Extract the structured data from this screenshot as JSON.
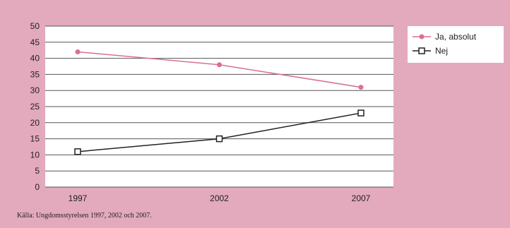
{
  "chart_data": {
    "type": "line",
    "categories": [
      "1997",
      "2002",
      "2007"
    ],
    "ylim": [
      0,
      50
    ],
    "yticks": [
      0,
      5,
      10,
      15,
      20,
      25,
      30,
      35,
      40,
      45,
      50
    ],
    "grid": true,
    "legend_position": "top-right",
    "series": [
      {
        "name": "Ja, absolut",
        "values": [
          42,
          38,
          31
        ],
        "color": "#d9708f",
        "marker": "filled-circle"
      },
      {
        "name": "Nej",
        "values": [
          11,
          15,
          23
        ],
        "color": "#222222",
        "marker": "open-square"
      }
    ]
  },
  "source_note": "Källa: Ungdomsstyrelsen 1997, 2002 och 2007.",
  "colors": {
    "background": "#e3a9bc",
    "plot_area": "#ffffff",
    "grid": "#555555"
  }
}
